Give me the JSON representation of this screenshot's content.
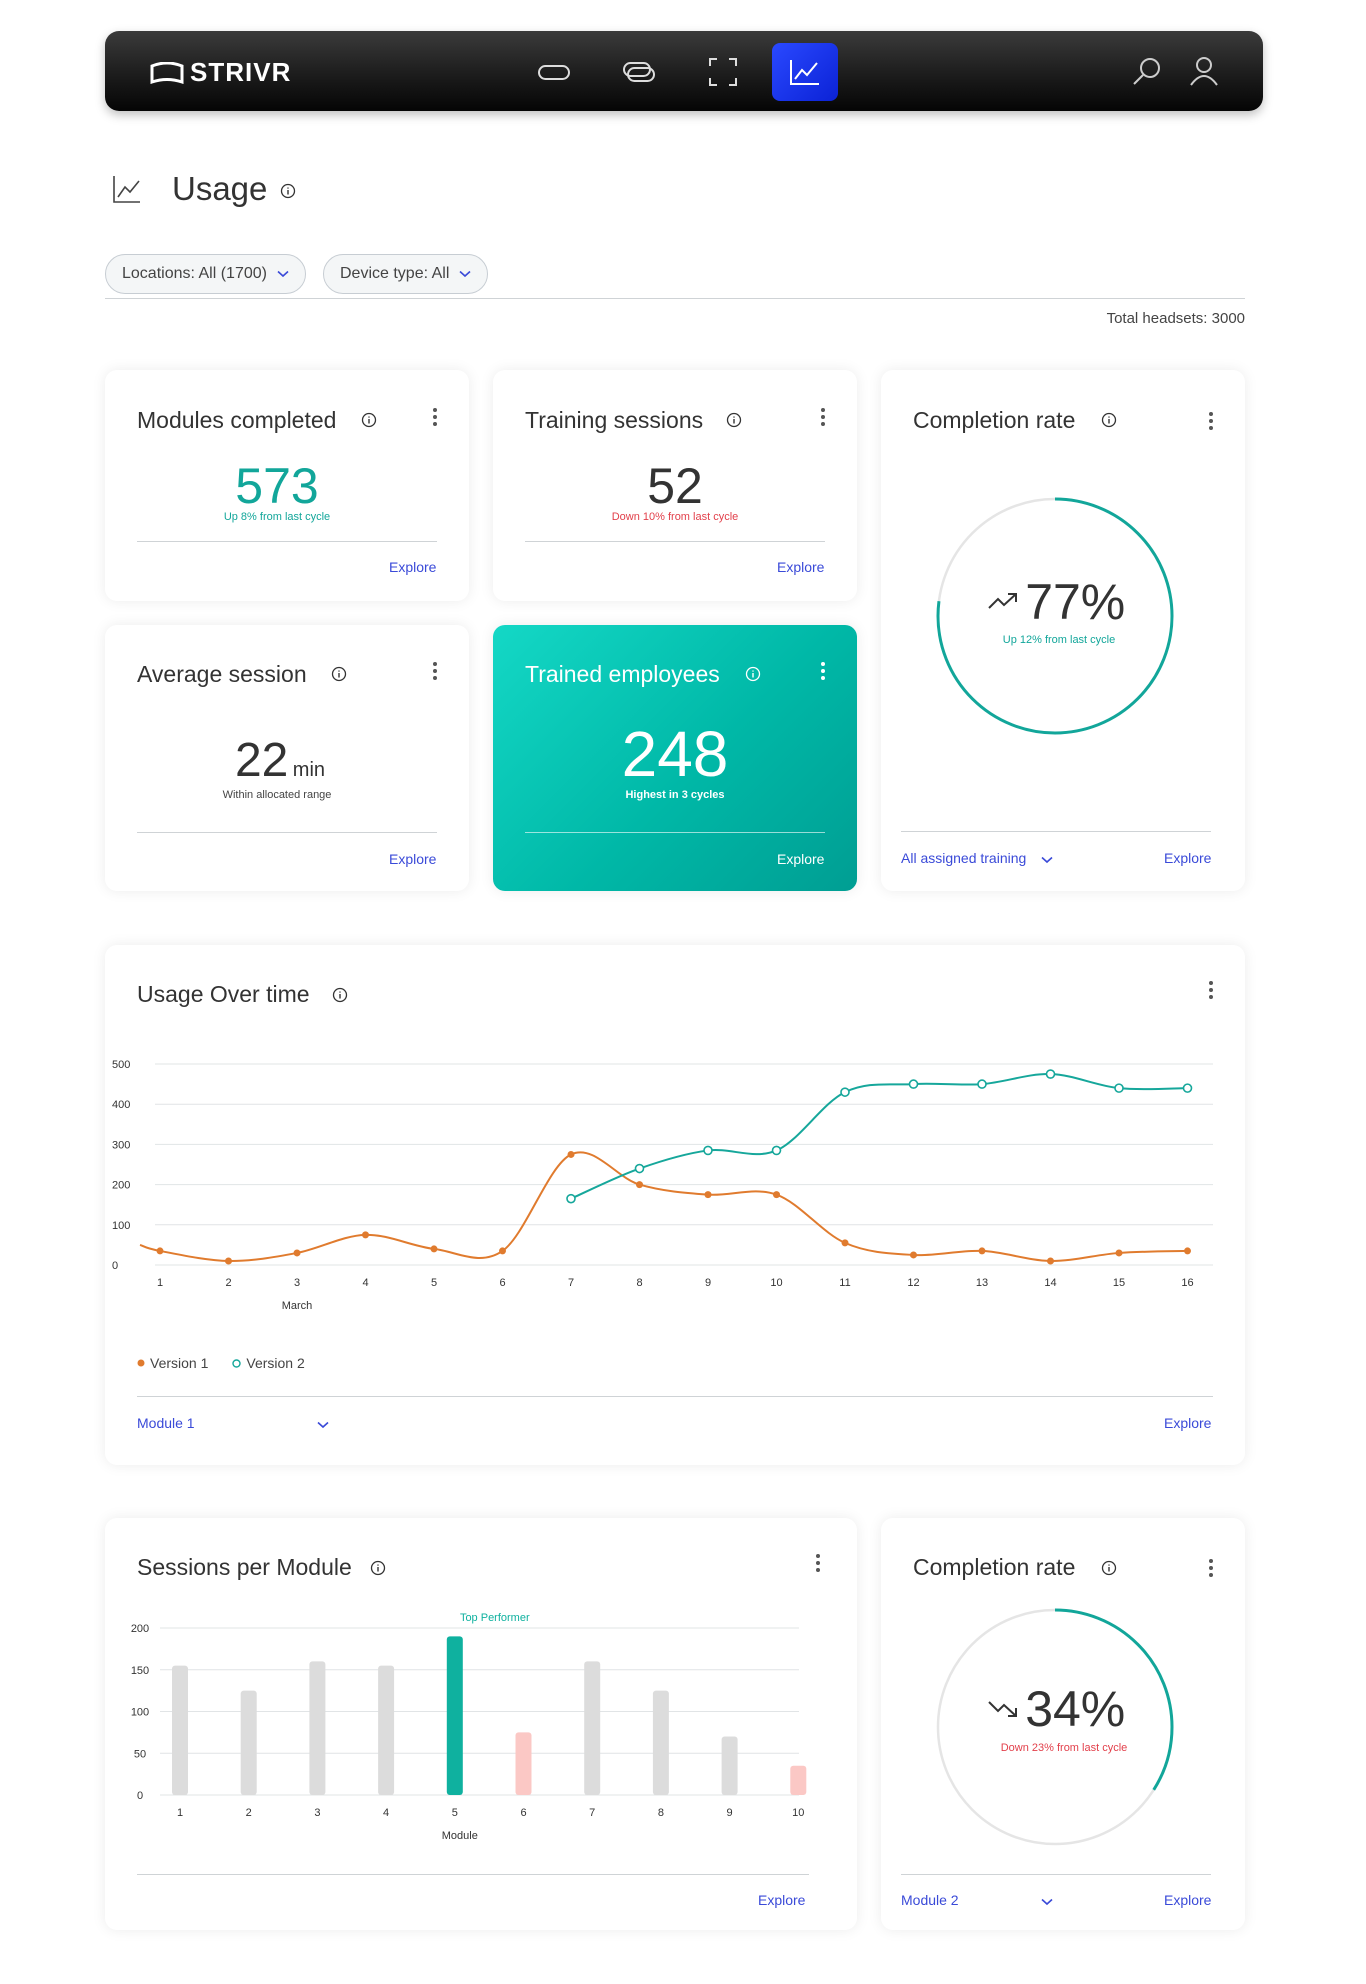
{
  "nav": {
    "logo": "STRIVR",
    "icons": [
      "headset-icon",
      "devices-icon",
      "fullscreen-icon",
      "chart-icon"
    ],
    "active_index": 3,
    "right_icons": [
      "search-icon",
      "user-icon"
    ]
  },
  "header": {
    "title": "Usage",
    "filters": [
      "Locations: All (1700)",
      "Device type: All"
    ],
    "total_headsets": "Total headsets: 3000"
  },
  "cards": {
    "modules_completed": {
      "title": "Modules completed",
      "value": "573",
      "sub": "Up 8% from last cycle",
      "explore": "Explore"
    },
    "training_sessions": {
      "title": "Training sessions",
      "value": "52",
      "sub": "Down 10% from last cycle",
      "explore": "Explore"
    },
    "average_session": {
      "title": "Average session",
      "value": "22",
      "unit": "min",
      "sub": "Within allocated range",
      "explore": "Explore"
    },
    "trained_employees": {
      "title": "Trained employees",
      "value": "248",
      "sub": "Highest in 3 cycles",
      "explore": "Explore"
    },
    "completion_rate_1": {
      "title": "Completion rate",
      "value": "77%",
      "sub": "Up 12% from last cycle",
      "progress": 0.77,
      "selector": "All assigned training",
      "explore": "Explore"
    },
    "completion_rate_2": {
      "title": "Completion rate",
      "value": "34%",
      "sub": "Down 23% from last cycle",
      "progress": 0.34,
      "selector": "Module 2",
      "explore": "Explore"
    }
  },
  "usage_over_time": {
    "title": "Usage Over time",
    "selector": "Module 1",
    "explore": "Explore",
    "legend": [
      "Version 1",
      "Version 2"
    ],
    "colors": {
      "version1": "#e07b2e",
      "version2": "#16a79b"
    }
  },
  "sessions_per_module": {
    "title": "Sessions per Module",
    "annotation": "Top Performer",
    "explore": "Explore",
    "colors": {
      "default": "#dcdcdc",
      "top": "#0fb19f",
      "low": "#fbc8c5"
    }
  },
  "chart_data": [
    {
      "type": "line",
      "title": "Usage Over time",
      "xlabel": "March",
      "x": [
        1,
        2,
        3,
        4,
        5,
        6,
        7,
        8,
        9,
        10,
        11,
        12,
        13,
        14,
        15,
        16
      ],
      "ylim": [
        0,
        500
      ],
      "yticks": [
        0,
        100,
        200,
        300,
        400,
        500
      ],
      "series": [
        {
          "name": "Version 1",
          "x": [
            1,
            2,
            3,
            4,
            5,
            6,
            7,
            8,
            9,
            10,
            11,
            12,
            13,
            14,
            15,
            16
          ],
          "values": [
            35,
            10,
            30,
            75,
            40,
            35,
            275,
            200,
            175,
            175,
            55,
            25,
            35,
            10,
            30,
            35
          ]
        },
        {
          "name": "Version 2",
          "x": [
            7,
            8,
            9,
            10,
            11,
            12,
            13,
            14,
            15,
            16
          ],
          "values": [
            165,
            240,
            285,
            285,
            430,
            450,
            450,
            475,
            440,
            440
          ]
        }
      ],
      "grid": true,
      "legend": "bottom-left"
    },
    {
      "type": "bar",
      "title": "Sessions per Module",
      "xlabel": "Module",
      "categories": [
        "1",
        "2",
        "3",
        "4",
        "5",
        "6",
        "7",
        "8",
        "9",
        "10"
      ],
      "values": [
        155,
        125,
        160,
        155,
        190,
        75,
        160,
        125,
        70,
        35
      ],
      "highlight": [
        "default",
        "default",
        "default",
        "default",
        "top",
        "low",
        "default",
        "default",
        "default",
        "low"
      ],
      "ylim": [
        0,
        200
      ],
      "yticks": [
        0,
        50,
        100,
        150,
        200
      ],
      "grid": true
    }
  ]
}
